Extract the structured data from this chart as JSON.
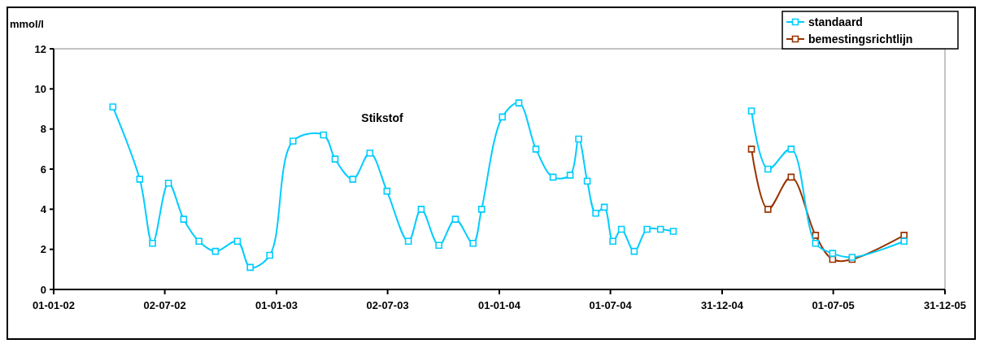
{
  "chart_data": {
    "type": "line",
    "title": "Stikstof",
    "ylabel": "mmol/l",
    "xlim": [
      "2002-01-01",
      "2005-12-31"
    ],
    "xticks": [
      {
        "value": "2002-01-01",
        "label": "01-01-02"
      },
      {
        "value": "2002-07-02",
        "label": "02-07-02"
      },
      {
        "value": "2003-01-01",
        "label": "01-01-03"
      },
      {
        "value": "2003-07-02",
        "label": "02-07-03"
      },
      {
        "value": "2004-01-01",
        "label": "01-01-04"
      },
      {
        "value": "2004-07-01",
        "label": "01-07-04"
      },
      {
        "value": "2004-12-31",
        "label": "31-12-04"
      },
      {
        "value": "2005-07-01",
        "label": "01-07-05"
      },
      {
        "value": "2005-12-31",
        "label": "31-12-05"
      }
    ],
    "ylim": [
      0,
      12
    ],
    "yticks": [
      0,
      2,
      4,
      6,
      8,
      10,
      12
    ],
    "grid": false,
    "legend": "top right",
    "marker": "square",
    "line_style": "solid",
    "series": [
      {
        "name": "standaard",
        "color": "#00ccff",
        "x": [
          "2002-04-08",
          "2002-05-22",
          "2002-06-12",
          "2002-07-08",
          "2002-08-02",
          "2002-08-27",
          "2002-09-23",
          "2002-10-29",
          "2002-11-19",
          "2002-12-21",
          "2003-01-28",
          "2003-03-19",
          "2003-04-07",
          "2003-05-06",
          "2003-06-03",
          "2003-07-01",
          "2003-08-05",
          "2003-08-26",
          "2003-09-24",
          "2003-10-21",
          "2003-11-19",
          "2003-12-03",
          "2004-01-06",
          "2004-02-02",
          "2004-03-01",
          "2004-03-29",
          "2004-04-26",
          "2004-05-10",
          "2004-05-24",
          "2004-06-07",
          "2004-06-21",
          "2004-07-05",
          "2004-07-19",
          "2004-08-09",
          "2004-08-30",
          "2004-09-21",
          "2004-10-12",
          "2004-12-31",
          "2005-02-17",
          "2005-03-16",
          "2005-04-23",
          "2005-06-02",
          "2005-06-30",
          "2005-08-01",
          "2005-10-25"
        ],
        "values": [
          9.1,
          5.5,
          2.3,
          5.3,
          3.5,
          2.4,
          1.9,
          2.4,
          1.1,
          1.7,
          7.4,
          7.7,
          6.5,
          5.5,
          6.8,
          4.9,
          2.4,
          4.0,
          2.2,
          3.5,
          2.3,
          4.0,
          8.6,
          9.3,
          7.0,
          5.6,
          5.7,
          7.5,
          5.4,
          3.8,
          4.1,
          2.4,
          3.0,
          1.9,
          3.0,
          3.0,
          2.9,
          null,
          8.9,
          6.0,
          7.0,
          2.3,
          1.8,
          1.6,
          2.4
        ]
      },
      {
        "name": "bemestingsrichtlijn",
        "color": "#993300",
        "x": [
          "2005-02-17",
          "2005-03-16",
          "2005-04-23",
          "2005-06-02",
          "2005-06-30",
          "2005-08-01",
          "2005-10-25"
        ],
        "values": [
          7.0,
          4.0,
          5.6,
          2.7,
          1.5,
          1.5,
          2.7
        ]
      }
    ]
  }
}
